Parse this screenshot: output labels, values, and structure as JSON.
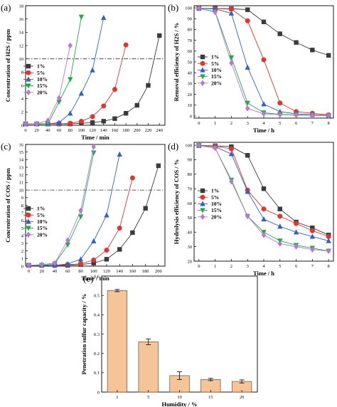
{
  "figure": {
    "panels": [
      {
        "letter": "(a)",
        "xlabel": "Time / min",
        "ylabel": "Concentration of H₂S / ppm"
      },
      {
        "letter": "(b)",
        "xlabel": "Time / h",
        "ylabel": "Removal efficiency of H₂S / %"
      },
      {
        "letter": "(c)",
        "xlabel": "Time / min",
        "ylabel": "Concentration of COS / ppm"
      },
      {
        "letter": "(d)",
        "xlabel": "Time / h",
        "ylabel": "Hydrolysis efficiency of COS / %"
      },
      {
        "letter": "(e)",
        "xlabel": "Humidity / %",
        "ylabel": "Penetration sulfur capacity / %"
      }
    ]
  },
  "colors": {
    "1%": "#3a3a3a",
    "5%": "#e3342f",
    "10%": "#2e60c9",
    "15%": "#22a84a",
    "20%": "#b777d8",
    "bar": "#f5c59a",
    "bar_edge": "#7a4a2a"
  },
  "chart_data": [
    {
      "type": "line",
      "title": "",
      "xlabel": "Time / min",
      "ylabel": "Concentration of H2S / ppm",
      "xlim": [
        0,
        250
      ],
      "ylim": [
        0,
        18
      ],
      "xticks": [
        0,
        20,
        40,
        60,
        80,
        100,
        120,
        140,
        160,
        180,
        200,
        220,
        240
      ],
      "yticks": [
        0,
        2,
        4,
        6,
        8,
        10,
        12,
        14,
        16,
        18
      ],
      "reference_line": {
        "y": 10,
        "style": "dash-dot"
      },
      "legend": "left-middle",
      "series": [
        {
          "name": "1%",
          "marker": "square",
          "x": [
            0,
            20,
            40,
            60,
            80,
            100,
            120,
            140,
            160,
            180,
            200,
            220,
            240
          ],
          "y": [
            0.2,
            0.2,
            0.2,
            0.2,
            0.2,
            0.3,
            0.4,
            0.6,
            1.0,
            1.8,
            3.0,
            6.0,
            13.5
          ]
        },
        {
          "name": "5%",
          "marker": "circle",
          "x": [
            0,
            20,
            40,
            60,
            80,
            100,
            120,
            140,
            160,
            180
          ],
          "y": [
            0.2,
            0.2,
            0.2,
            0.2,
            0.3,
            0.6,
            1.3,
            2.9,
            5.4,
            12.1
          ]
        },
        {
          "name": "10%",
          "marker": "triangle-up",
          "x": [
            0,
            20,
            40,
            60,
            80,
            100,
            120,
            140
          ],
          "y": [
            0.2,
            0.2,
            0.2,
            0.4,
            1.8,
            4.8,
            8.3,
            16.2
          ]
        },
        {
          "name": "15%",
          "marker": "triangle-down",
          "x": [
            0,
            20,
            40,
            60,
            80,
            100
          ],
          "y": [
            0.2,
            0.2,
            0.2,
            3.5,
            6.9,
            16.3
          ]
        },
        {
          "name": "20%",
          "marker": "diamond",
          "x": [
            0,
            20,
            40,
            60,
            80
          ],
          "y": [
            0.2,
            0.2,
            0.7,
            4.1,
            12.0
          ]
        }
      ]
    },
    {
      "type": "line",
      "title": "",
      "xlabel": "Time / h",
      "ylabel": "Removal efficiency of H2S / %",
      "xlim": [
        -0.3,
        8.3
      ],
      "ylim": [
        -2,
        102
      ],
      "xticks": [
        0,
        1,
        2,
        3,
        4,
        5,
        6,
        7,
        8
      ],
      "yticks": [
        0,
        10,
        20,
        30,
        40,
        50,
        60,
        70,
        80,
        90,
        100
      ],
      "legend": "left-middle",
      "series": [
        {
          "name": "1%",
          "marker": "square",
          "x": [
            0,
            1,
            2,
            3,
            4,
            5,
            6,
            7,
            8
          ],
          "y": [
            99.5,
            99.5,
            99.2,
            98.3,
            87,
            76,
            68,
            61,
            56
          ]
        },
        {
          "name": "5%",
          "marker": "circle",
          "x": [
            0,
            1,
            2,
            3,
            4,
            5,
            6,
            7,
            8
          ],
          "y": [
            99.5,
            99.3,
            98.9,
            88,
            52,
            12,
            4,
            2.5,
            1
          ]
        },
        {
          "name": "10%",
          "marker": "triangle-up",
          "x": [
            0,
            1,
            2,
            3,
            4,
            5,
            6,
            7,
            8
          ],
          "y": [
            99.5,
            99,
            95,
            45,
            11,
            4,
            2,
            1.2,
            0.6
          ]
        },
        {
          "name": "15%",
          "marker": "triangle-down",
          "x": [
            0,
            1,
            2,
            3,
            4,
            5,
            6,
            7,
            8
          ],
          "y": [
            99.5,
            96.5,
            54,
            12,
            3,
            1.5,
            1.1,
            0.7,
            0.4
          ]
        },
        {
          "name": "20%",
          "marker": "diamond",
          "x": [
            0,
            1,
            2,
            3,
            4,
            5,
            6,
            7,
            8
          ],
          "y": [
            99.5,
            96,
            49,
            7,
            2,
            1.2,
            0.8,
            0.5,
            0.3
          ]
        }
      ]
    },
    {
      "type": "line",
      "title": "",
      "xlabel": "Time / min",
      "ylabel": "Concentration of COS / ppm",
      "xlim": [
        -5,
        210
      ],
      "ylim": [
        0,
        16
      ],
      "xticks": [
        0,
        20,
        40,
        60,
        80,
        100,
        120,
        140,
        160,
        180,
        200
      ],
      "yticks": [
        0,
        1,
        2,
        3,
        4,
        5,
        6,
        7,
        8,
        9,
        10,
        11,
        12,
        13,
        14,
        15,
        16
      ],
      "reference_line": {
        "y": 10,
        "style": "dash-dot"
      },
      "legend": "left-middle",
      "series": [
        {
          "name": "1%",
          "marker": "square",
          "x": [
            0,
            20,
            40,
            60,
            80,
            100,
            120,
            140,
            160,
            180,
            200
          ],
          "y": [
            0.1,
            0.1,
            0.1,
            0.1,
            0.2,
            0.4,
            0.9,
            2.2,
            4.4,
            7.6,
            13.2
          ]
        },
        {
          "name": "5%",
          "marker": "circle",
          "x": [
            0,
            20,
            40,
            60,
            80,
            100,
            120,
            140,
            160
          ],
          "y": [
            0.1,
            0.1,
            0.1,
            0.2,
            0.3,
            0.8,
            2.1,
            5.0,
            11.6
          ]
        },
        {
          "name": "10%",
          "marker": "triangle-up",
          "x": [
            0,
            20,
            40,
            60,
            80,
            100,
            120,
            140
          ],
          "y": [
            0.1,
            0.1,
            0.1,
            0.3,
            0.9,
            3.3,
            6.7,
            14.7
          ]
        },
        {
          "name": "15%",
          "marker": "triangle-down",
          "x": [
            0,
            20,
            40,
            60,
            80,
            100
          ],
          "y": [
            0.1,
            0.1,
            0.3,
            2.8,
            6.5,
            14.9
          ]
        },
        {
          "name": "20%",
          "marker": "diamond",
          "x": [
            0,
            20,
            40,
            60,
            80,
            100
          ],
          "y": [
            0.1,
            0.2,
            0.4,
            3.4,
            7.3,
            15.7
          ]
        }
      ]
    },
    {
      "type": "line",
      "title": "",
      "xlabel": "Time / h",
      "ylabel": "Hydrolysis efficiency of COS / %",
      "xlim": [
        -0.3,
        8.3
      ],
      "ylim": [
        20,
        102
      ],
      "xticks": [
        0,
        1,
        2,
        3,
        4,
        5,
        6,
        7,
        8
      ],
      "yticks": [
        20,
        30,
        40,
        50,
        60,
        70,
        80,
        90,
        100
      ],
      "legend": "left-middle",
      "series": [
        {
          "name": "1%",
          "marker": "square",
          "x": [
            0,
            1,
            2,
            3,
            4,
            5,
            6,
            7,
            8
          ],
          "y": [
            99.8,
            99.6,
            99,
            93,
            70,
            56,
            47,
            43,
            38
          ]
        },
        {
          "name": "5%",
          "marker": "circle",
          "x": [
            0,
            1,
            2,
            3,
            4,
            5,
            6,
            7,
            8
          ],
          "y": [
            99.8,
            99.4,
            97.5,
            69,
            56,
            51,
            46,
            41,
            37
          ]
        },
        {
          "name": "10%",
          "marker": "triangle-up",
          "x": [
            0,
            1,
            2,
            3,
            4,
            5,
            6,
            7,
            8
          ],
          "y": [
            99.8,
            99,
            94,
            68,
            49,
            44,
            40,
            37,
            34
          ]
        },
        {
          "name": "15%",
          "marker": "triangle-down",
          "x": [
            0,
            1,
            2,
            3,
            4,
            5,
            6,
            7,
            8
          ],
          "y": [
            99.8,
            98,
            76,
            51,
            40,
            34,
            31,
            29,
            27
          ]
        },
        {
          "name": "20%",
          "marker": "diamond",
          "x": [
            0,
            1,
            2,
            3,
            4,
            5,
            6,
            7,
            8
          ],
          "y": [
            99.8,
            98,
            75,
            51,
            38,
            32,
            30,
            28,
            27
          ]
        }
      ]
    },
    {
      "type": "bar",
      "title": "",
      "xlabel": "Humidity / %",
      "ylabel": "Penetration sulfur capacity / %",
      "categories": [
        "1",
        "5",
        "10",
        "15",
        "20"
      ],
      "values": [
        0.525,
        0.26,
        0.085,
        0.065,
        0.055
      ],
      "errors": [
        0.006,
        0.015,
        0.02,
        0.006,
        0.008
      ],
      "ylim": [
        0,
        0.6
      ],
      "yticks": [
        0,
        0.1,
        0.2,
        0.3,
        0.4,
        0.5,
        0.6
      ]
    }
  ]
}
